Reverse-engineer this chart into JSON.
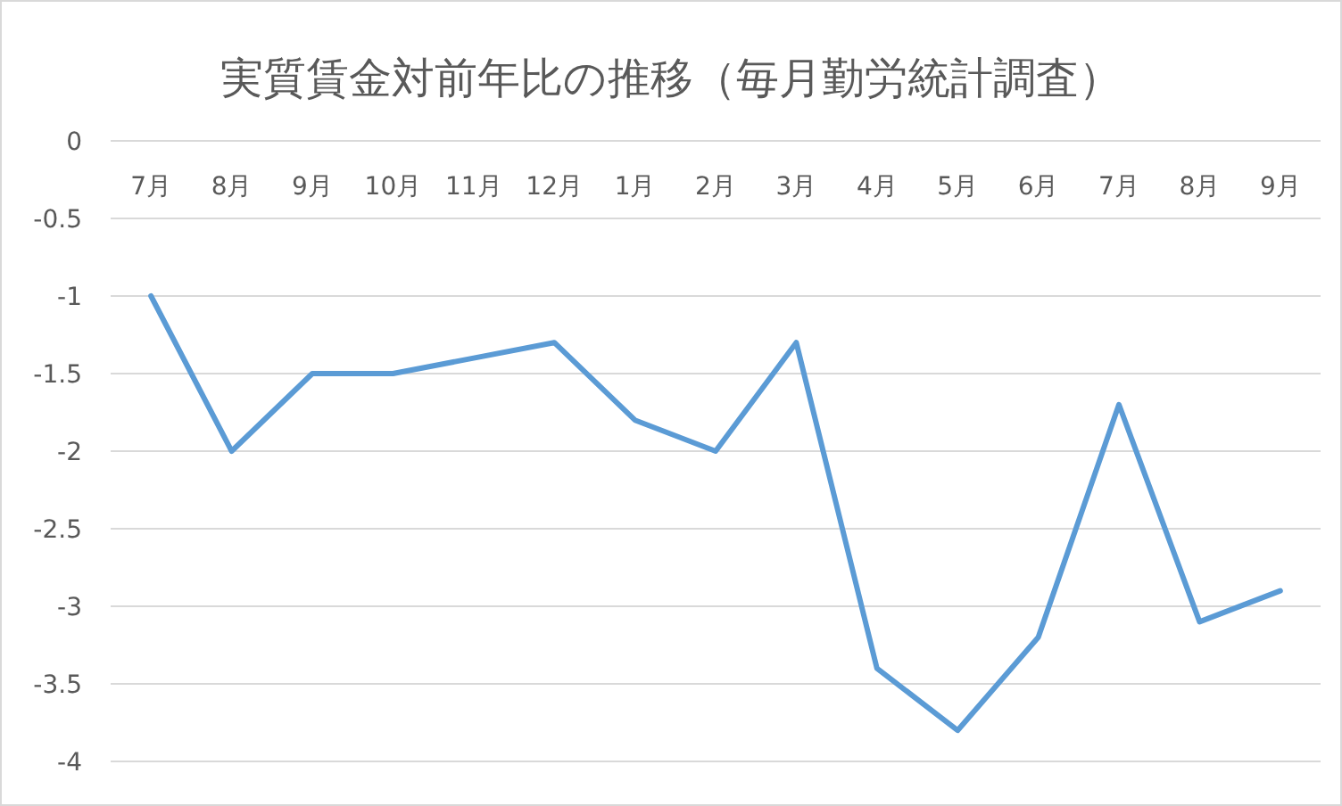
{
  "chart_data": {
    "type": "line",
    "title": "実質賃金対前年比の推移（毎月勤労統計調査）",
    "categories": [
      "7月",
      "8月",
      "9月",
      "10月",
      "11月",
      "12月",
      "1月",
      "2月",
      "3月",
      "4月",
      "5月",
      "6月",
      "7月",
      "8月",
      "9月"
    ],
    "series": [
      {
        "color": "#5b9bd5",
        "values": [
          -1.0,
          -2.0,
          -1.5,
          -1.5,
          -1.4,
          -1.3,
          -1.8,
          -2.0,
          -1.3,
          -3.4,
          -3.8,
          -3.2,
          -1.7,
          -3.1,
          -2.9
        ]
      }
    ],
    "ylim": [
      -4,
      0
    ],
    "yticks": [
      0,
      -0.5,
      -1,
      -1.5,
      -2,
      -2.5,
      -3,
      -3.5,
      -4
    ],
    "grid": "y"
  }
}
